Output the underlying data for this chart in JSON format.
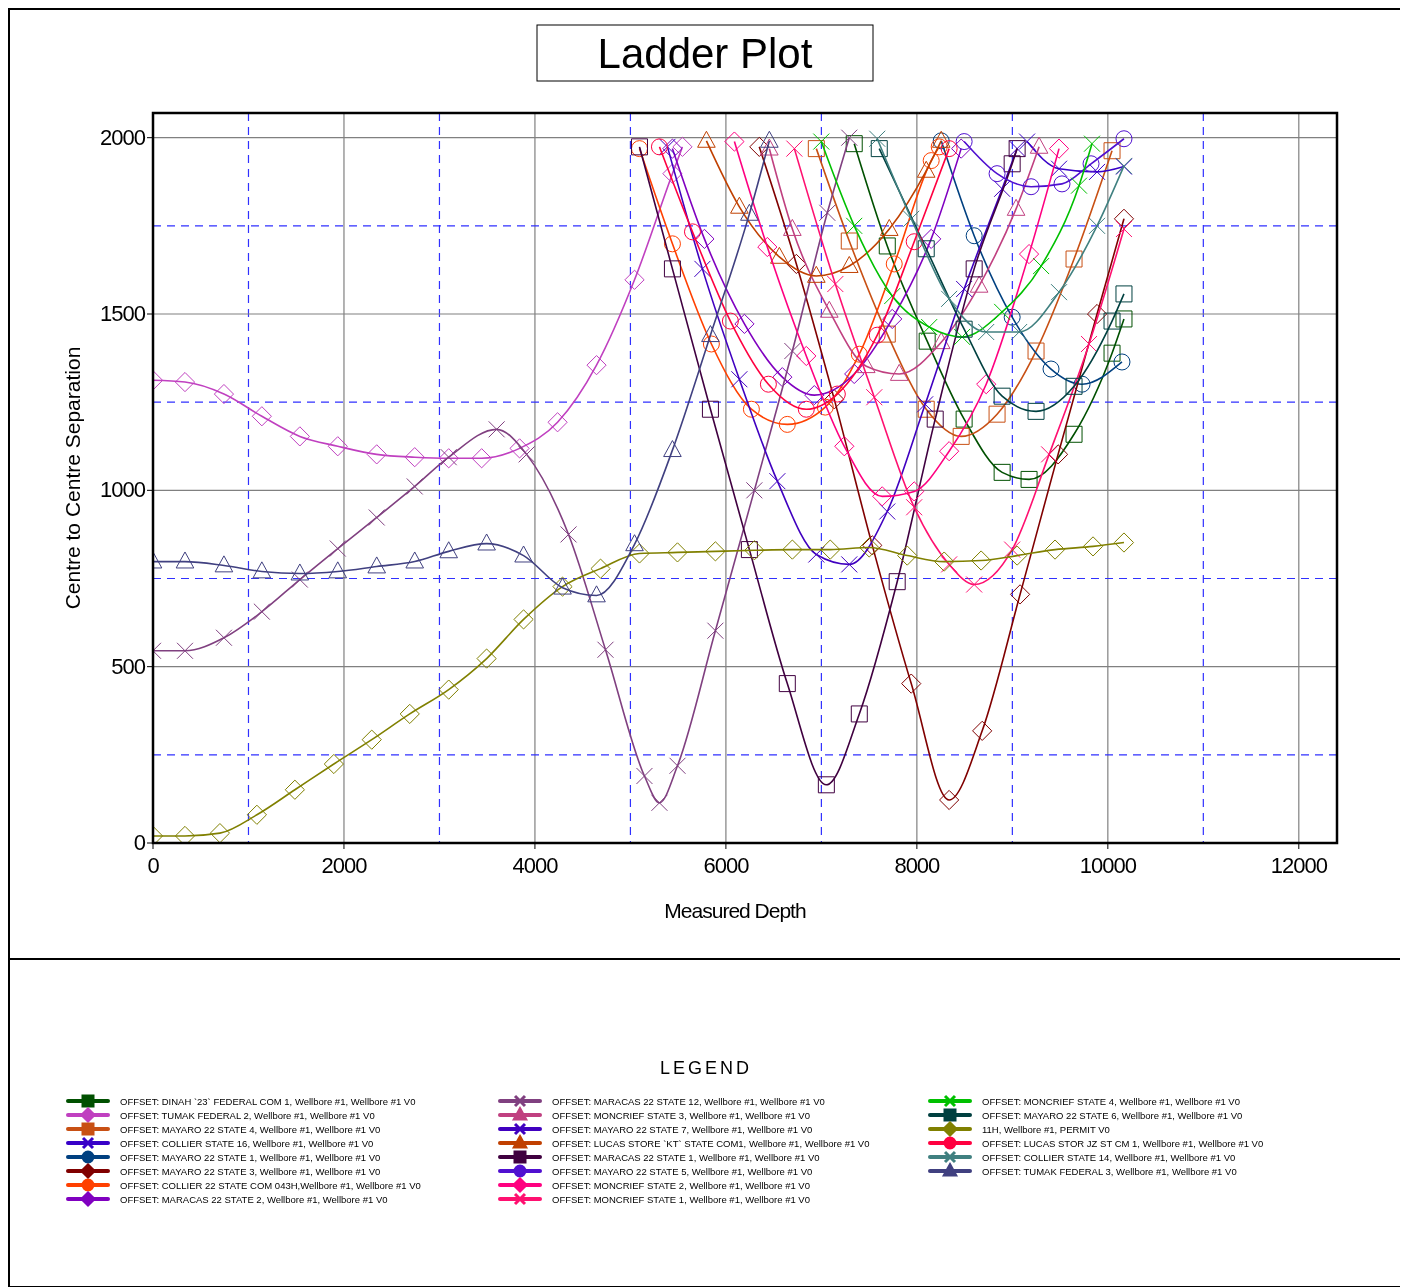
{
  "chart_data": {
    "type": "line",
    "title": "Ladder Plot",
    "xlabel": "Measured Depth",
    "ylabel": "Centre to Centre Separation",
    "legend_title": "LEGEND",
    "legend": "bottom",
    "grid": true,
    "xlim": [
      0,
      12400
    ],
    "ylim": [
      0,
      2070
    ],
    "xticks": [
      0,
      {
        "value": 1000,
        "label": null
      },
      2000,
      {
        "value": 3000,
        "label": null
      },
      4000,
      {
        "value": 5000,
        "label": null
      },
      6000,
      {
        "value": 7000,
        "label": null
      },
      8000,
      {
        "value": 9000,
        "label": null
      },
      10000,
      {
        "value": 11000,
        "label": null
      },
      12000
    ],
    "yticks": [
      0,
      {
        "value": 250,
        "label": null
      },
      500,
      {
        "value": 750,
        "label": null
      },
      1000,
      {
        "value": 1250,
        "label": null
      },
      1500,
      {
        "value": 1750,
        "label": null
      },
      2000
    ],
    "series": [
      {
        "name": "OFFSET: DINAH `23` FEDERAL COM 1, Wellbore #1, Wellbore #1 V0",
        "color": "#005000",
        "marker": "square",
        "x": [
          7344,
          7690,
          8108,
          8495,
          8893,
          9175,
          9646,
          10044,
          10169
        ],
        "values": [
          1983,
          1693,
          1423,
          1202,
          1051,
          1031,
          1159,
          1389,
          1486
        ]
      },
      {
        "name": "OFFSET: TUMAK FEDERAL 2, Wellbore #1, Wellbore #1 V0",
        "color": "#c040c0",
        "marker": "diamond",
        "x": [
          0,
          335,
          743,
          1140,
          1538,
          1935,
          2343,
          2741,
          3097,
          3442,
          3839,
          4237,
          4645,
          5043,
          5440,
          5545
        ],
        "values": [
          1312,
          1307,
          1273,
          1210,
          1153,
          1125,
          1102,
          1094,
          1091,
          1091,
          1119,
          1193,
          1355,
          1597,
          1898,
          1974
        ]
      },
      {
        "name": "OFFSET: MAYARO 22 STATE 4, Wellbore #1, Wellbore #1 V0",
        "color": "#c85014",
        "marker": "square",
        "x": [
          6947,
          7292,
          7690,
          8098,
          8464,
          8840,
          9248,
          9646,
          10044
        ],
        "values": [
          1969,
          1707,
          1443,
          1230,
          1153,
          1216,
          1395,
          1656,
          1963
        ]
      },
      {
        "name": "OFFSET: COLLIER STATE 16, Wellbore #1, Wellbore #1 V0",
        "color": "#3800c8",
        "marker": "cross",
        "x": [
          9154,
          9489,
          9887,
          10169
        ],
        "values": [
          1989,
          1912,
          1903,
          1918
        ]
      },
      {
        "name": "OFFSET: MAYARO 22 STATE 1, Wellbore #1, Wellbore #1 V0",
        "color": "#004080",
        "marker": "circle",
        "x": [
          8255,
          8600,
          8998,
          9405,
          9730,
          10148
        ],
        "values": [
          1991,
          1722,
          1491,
          1344,
          1301,
          1364
        ]
      },
      {
        "name": "OFFSET: MAYARO 22 STATE 3, Wellbore #1, Wellbore #1 V0",
        "color": "#800000",
        "marker": "diamond",
        "x": [
          6350,
          6738,
          7135,
          7533,
          7941,
          8338,
          8684,
          9081,
          9479,
          9887,
          10169
        ],
        "values": [
          1974,
          1642,
          1258,
          844,
          452,
          122,
          318,
          705,
          1102,
          1500,
          1770
        ]
      },
      {
        "name": "OFFSET: COLLIER 22 STATE COM 043H,Wellbore #1, Wellbore #1 V0",
        "color": "#ff4000",
        "marker": "circle",
        "x": [
          5095,
          5440,
          5848,
          6267,
          6643,
          7041,
          7397,
          7763,
          8150,
          8234
        ],
        "values": [
          1969,
          1699,
          1415,
          1230,
          1187,
          1236,
          1386,
          1642,
          1935,
          1974
        ]
      },
      {
        "name": "OFFSET: MARACAS 22 STATE 2, Wellbore #1, Wellbore #1 V0",
        "color": "#8000c0",
        "marker": "diamond",
        "x": [
          5440,
          5775,
          6194,
          6591,
          6926,
          7344,
          7742,
          8150,
          8464
        ],
        "values": [
          1969,
          1713,
          1472,
          1321,
          1270,
          1330,
          1486,
          1713,
          1969
        ]
      },
      {
        "name": "OFFSET: MARACAS 22 STATE 12, Wellbore #1, Wellbore #1 V0",
        "color": "#804080",
        "marker": "cross",
        "x": [
          0,
          335,
          743,
          1140,
          1538,
          1935,
          2343,
          2741,
          3097,
          3599,
          3913,
          4352,
          4739,
          5147,
          5304,
          5493,
          5890,
          6298,
          6696,
          7062,
          7292
        ],
        "values": [
          545,
          545,
          582,
          656,
          747,
          835,
          923,
          1011,
          1094,
          1173,
          1102,
          875,
          548,
          190,
          114,
          219,
          602,
          1000,
          1395,
          1787,
          2000
        ]
      },
      {
        "name": "OFFSET: MONCRIEF STATE 3, Wellbore #1, Wellbore #1 V0",
        "color": "#c04080",
        "marker": "triangle",
        "x": [
          6455,
          6696,
          7083,
          7470,
          7815,
          8255,
          8652,
          9039,
          9280
        ],
        "values": [
          1969,
          1741,
          1509,
          1352,
          1330,
          1420,
          1580,
          1798,
          1974
        ]
      },
      {
        "name": "OFFSET: MAYARO 22 STATE 7, Wellbore #1, Wellbore #1 V0",
        "color": "#4000c0",
        "marker": "cross",
        "x": [
          5388,
          5754,
          6141,
          6539,
          6947,
          7292,
          7690,
          8087,
          8495,
          8893,
          9050
        ],
        "values": [
          1974,
          1628,
          1315,
          1026,
          818,
          790,
          940,
          1244,
          1571,
          1855,
          1969
        ]
      },
      {
        "name": "OFFSET: LUCAS STORE `KT` STATE COM1, Wellbore #1, Wellbore #1 V0",
        "color": "#c04000",
        "marker": "triangle",
        "x": [
          5796,
          6141,
          6560,
          6947,
          7292,
          7711,
          8098,
          8255
        ],
        "values": [
          1991,
          1804,
          1662,
          1608,
          1636,
          1741,
          1906,
          1991
        ]
      },
      {
        "name": "OFFSET: MARACAS 22 STATE 1, Wellbore #1, Wellbore #1 V0",
        "color": "#400040",
        "marker": "square",
        "x": [
          5095,
          5440,
          5838,
          6246,
          6643,
          7052,
          7397,
          7794,
          8192,
          8600,
          8998,
          9050
        ],
        "values": [
          1974,
          1628,
          1230,
          832,
          452,
          165,
          366,
          741,
          1202,
          1628,
          1926,
          1969
        ]
      },
      {
        "name": "OFFSET: MAYARO 22 STATE 5, Wellbore #1, Wellbore #1 V0",
        "color": "#5010d0",
        "marker": "circle",
        "x": [
          8495,
          8840,
          9196,
          9520,
          9824,
          10169
        ],
        "values": [
          1989,
          1898,
          1861,
          1869,
          1926,
          1997
        ]
      },
      {
        "name": "OFFSET: MONCRIEF STATE 2, Wellbore #1, Wellbore #1 V0",
        "color": "#ff0080",
        "marker": "diamond",
        "x": [
          6089,
          6434,
          6842,
          7240,
          7637,
          7972,
          8338,
          8726,
          9175,
          9489
        ],
        "values": [
          1989,
          1690,
          1381,
          1125,
          983,
          997,
          1111,
          1301,
          1670,
          1969
        ]
      },
      {
        "name": "OFFSET: MONCRIEF STATE 1, Wellbore #1, Wellbore #1 V0",
        "color": "#ff1070",
        "marker": "cross",
        "x": [
          6717,
          7146,
          7554,
          7972,
          8338,
          8600,
          8998,
          9385,
          9803,
          10169
        ],
        "values": [
          1969,
          1585,
          1264,
          952,
          790,
          733,
          832,
          1102,
          1415,
          1741
        ]
      },
      {
        "name": "OFFSET: MONCRIEF STATE 4, Wellbore #1, Wellbore #1 V0",
        "color": "#00c000",
        "marker": "cross",
        "x": [
          6999,
          7344,
          7742,
          8129,
          8474,
          8893,
          9301,
          9698,
          9834
        ],
        "values": [
          1989,
          1750,
          1551,
          1463,
          1435,
          1506,
          1636,
          1864,
          1983
        ]
      },
      {
        "name": "OFFSET: MAYARO 22 STATE 6, Wellbore #1, Wellbore #1 V0",
        "color": "#004040",
        "marker": "square",
        "x": [
          7606,
          8098,
          8495,
          8893,
          9248,
          9646,
          10044,
          10169
        ],
        "values": [
          1969,
          1685,
          1457,
          1267,
          1224,
          1295,
          1480,
          1557
        ]
      },
      {
        "name": "11H, Wellbore #1, PERMIT V0",
        "color": "#808000",
        "marker": "diamond",
        "x": [
          0,
          335,
          701,
          1088,
          1486,
          1894,
          2291,
          2689,
          3097,
          3494,
          3881,
          4289,
          4687,
          5095,
          5493,
          5890,
          6298,
          6696,
          7093,
          7501,
          7899,
          8286,
          8673,
          9050,
          9447,
          9845,
          10169
        ],
        "values": [
          20,
          20,
          28,
          80,
          151,
          224,
          293,
          366,
          435,
          523,
          634,
          727,
          778,
          821,
          824,
          827,
          830,
          832,
          832,
          838,
          815,
          798,
          801,
          815,
          832,
          841,
          852
        ]
      },
      {
        "name": "OFFSET: LUCAS STOR JZ ST CM 1, Wellbore #1, Wellbore #1 V0",
        "color": "#ff0040",
        "marker": "circle",
        "x": [
          5304,
          5650,
          6047,
          6445,
          6842,
          7167,
          7585,
          7972,
          8338
        ],
        "values": [
          1974,
          1733,
          1480,
          1301,
          1230,
          1273,
          1440,
          1705,
          1969
        ]
      },
      {
        "name": "OFFSET: COLLIER STATE 14, Wellbore #1, Wellbore #1 V0",
        "color": "#408080",
        "marker": "cross",
        "x": [
          7585,
          7941,
          8338,
          8726,
          9071,
          9489,
          9887,
          10169
        ],
        "values": [
          1997,
          1770,
          1543,
          1449,
          1449,
          1562,
          1750,
          1920
        ]
      },
      {
        "name": "OFFSET: TUMAK FEDERAL 3, Wellbore #1, Wellbore #1 V0",
        "color": "#404080",
        "marker": "triangle",
        "x": [
          0,
          335,
          743,
          1140,
          1538,
          1935,
          2343,
          2741,
          3097,
          3494,
          3881,
          4289,
          4645,
          5043,
          5440,
          5838,
          6246,
          6455
        ],
        "values": [
          798,
          798,
          787,
          770,
          764,
          770,
          784,
          798,
          827,
          849,
          815,
          724,
          702,
          847,
          1114,
          1440,
          1784,
          1991
        ]
      }
    ]
  }
}
